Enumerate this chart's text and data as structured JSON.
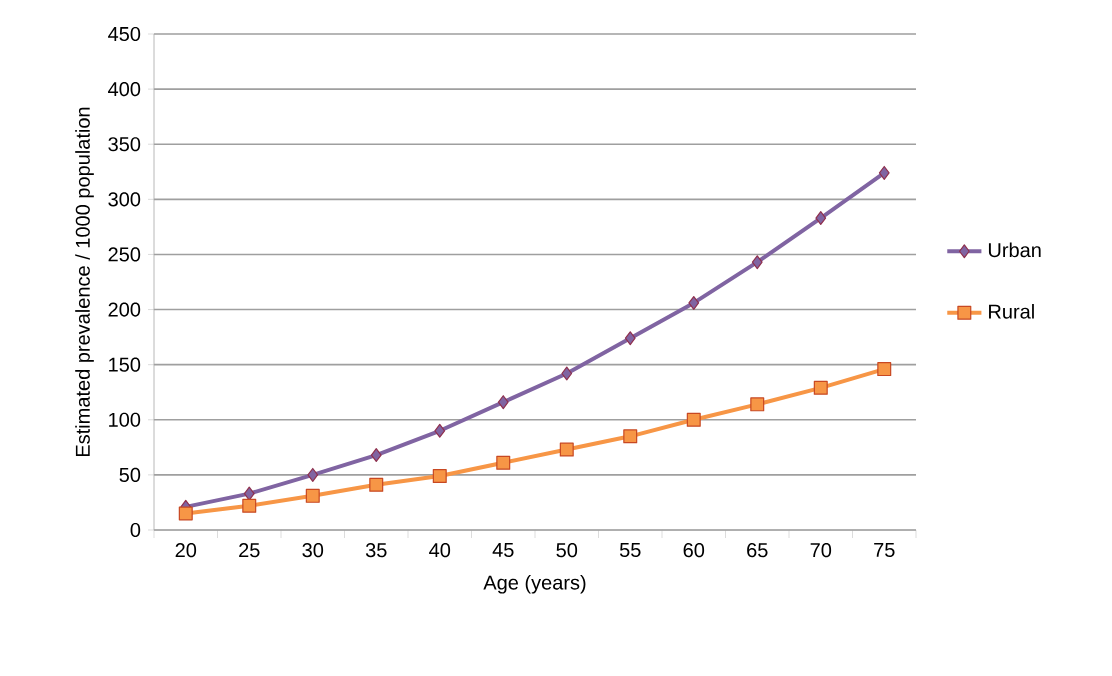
{
  "chart_data": {
    "type": "line",
    "xlabel": "Age (years)",
    "ylabel": "Estimated prevalence / 1000 population",
    "categories": [
      "20",
      "25",
      "30",
      "35",
      "40",
      "45",
      "50",
      "55",
      "60",
      "65",
      "70",
      "75"
    ],
    "series": [
      {
        "name": "Urban",
        "color": "#8064a2",
        "marker": "diamond",
        "values": [
          21,
          33,
          50,
          68,
          90,
          116,
          142,
          174,
          206,
          243,
          283,
          324
        ]
      },
      {
        "name": "Rural",
        "color": "#f79646",
        "marker": "square",
        "values": [
          15,
          22,
          31,
          41,
          49,
          61,
          73,
          85,
          100,
          114,
          129,
          146
        ]
      }
    ],
    "ylim": [
      0,
      450
    ],
    "yticks": [
      0,
      50,
      100,
      150,
      200,
      250,
      300,
      350,
      400,
      450
    ],
    "grid": "y",
    "legend": "right",
    "line_style": "solid"
  }
}
